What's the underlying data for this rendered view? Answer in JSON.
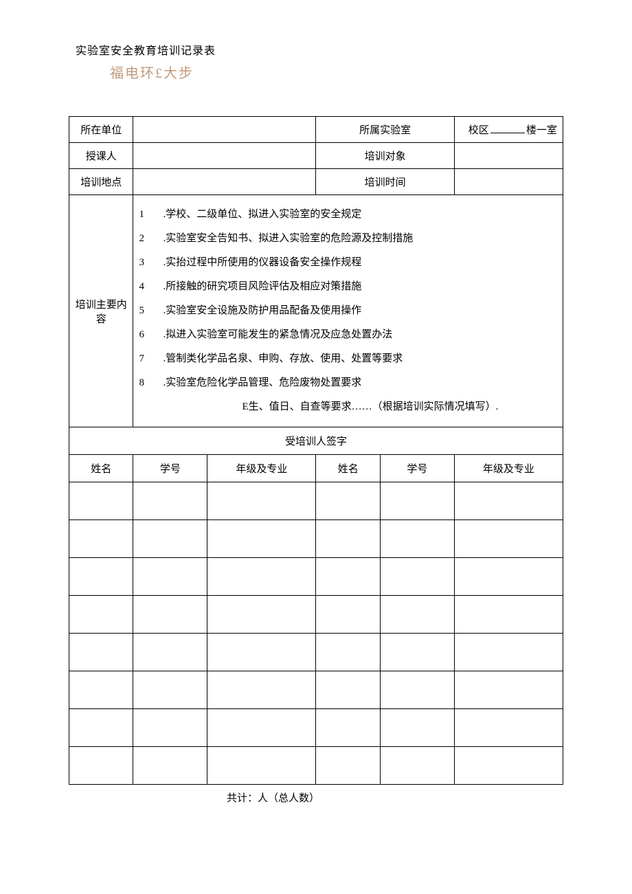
{
  "header": {
    "title": "实验室安全教育培训记录表",
    "subtitle": "福电环£大步"
  },
  "form": {
    "row1": {
      "label1": "所在单位",
      "label2": "所属实验室",
      "location_prefix": "校区",
      "location_mid": "楼一室"
    },
    "row2": {
      "label1": "授课人",
      "label2": "培训对象"
    },
    "row3": {
      "label1": "培训地点",
      "label2": "培训时间"
    },
    "content": {
      "label": "培训主要内容",
      "items": [
        {
          "num": "1",
          "text": ".学校、二级单位、拟进入实验室的安全规定"
        },
        {
          "num": "2",
          "text": ".实验室安全告知书、拟进入实验室的危险源及控制措施"
        },
        {
          "num": "3",
          "text": ".实抬过程中所使用的仪器设备安全操作规程"
        },
        {
          "num": "4",
          "text": ".所接触的研究项目风险评估及相应对策措施"
        },
        {
          "num": "5",
          "text": ".实验室安全设施及防护用品配备及使用操作"
        },
        {
          "num": "6",
          "text": ".拟进入实验室可能发生的紧急情况及应急处置办法"
        },
        {
          "num": "7",
          "text": ".管制类化学品名泉、申购、存放、使用、处置等要求"
        },
        {
          "num": "8",
          "text": ".实验室危险化学品管理、危险废物处置要求"
        }
      ],
      "footer": "E生、值日、自查等要求……（根据培训实际情况填写）."
    },
    "signature": {
      "section_title": "受培训人签字",
      "headers": {
        "name": "姓名",
        "id": "学号",
        "major": "年级及专业"
      },
      "row_count": 8
    },
    "total": "共计：人（总人数）"
  }
}
